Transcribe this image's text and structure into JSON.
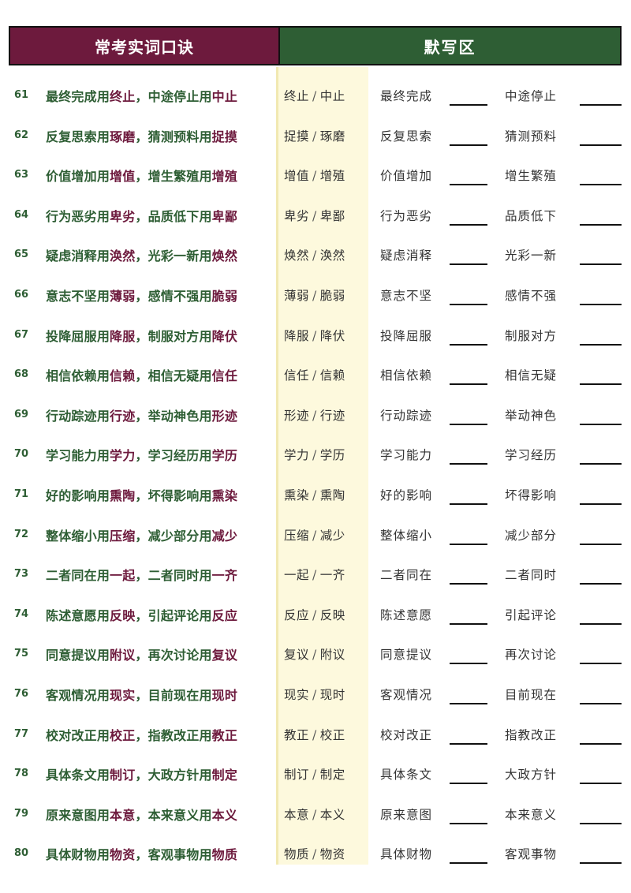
{
  "header": {
    "left_title": "常考实词口诀",
    "right_title": "默写区"
  },
  "colors": {
    "maroon": "#6d1a3d",
    "green": "#2e5e34",
    "answer_band": "#fdf9dd"
  },
  "rows": [
    {
      "num": "61",
      "a": "最终完成",
      "w1": "终止",
      "b": "中途停止",
      "w2": "中止",
      "ans1": "终止",
      "ans2": "中止",
      "q1": "最终完成",
      "q2": "中途停止"
    },
    {
      "num": "62",
      "a": "反复思索",
      "w1": "琢磨",
      "b": "猜测预料",
      "w2": "捉摸",
      "ans1": "捉摸",
      "ans2": "琢磨",
      "q1": "反复思索",
      "q2": "猜测预料"
    },
    {
      "num": "63",
      "a": "价值增加",
      "w1": "增值",
      "b": "增生繁殖",
      "w2": "增殖",
      "ans1": "增值",
      "ans2": "增殖",
      "q1": "价值增加",
      "q2": "增生繁殖"
    },
    {
      "num": "64",
      "a": "行为恶劣",
      "w1": "卑劣",
      "b": "品质低下",
      "w2": "卑鄙",
      "ans1": "卑劣",
      "ans2": "卑鄙",
      "q1": "行为恶劣",
      "q2": "品质低下"
    },
    {
      "num": "65",
      "a": "疑虑消释",
      "w1": "涣然",
      "b": "光彩一新",
      "w2": "焕然",
      "ans1": "焕然",
      "ans2": "涣然",
      "q1": "疑虑消释",
      "q2": "光彩一新"
    },
    {
      "num": "66",
      "a": "意志不坚",
      "w1": "薄弱",
      "b": "感情不强",
      "w2": "脆弱",
      "ans1": "薄弱",
      "ans2": "脆弱",
      "q1": "意志不坚",
      "q2": "感情不强"
    },
    {
      "num": "67",
      "a": "投降屈服",
      "w1": "降服",
      "b": "制服对方",
      "w2": "降伏",
      "ans1": "降服",
      "ans2": "降伏",
      "q1": "投降屈服",
      "q2": "制服对方"
    },
    {
      "num": "68",
      "a": "相信依赖",
      "w1": "信赖",
      "b": "相信无疑",
      "w2": "信任",
      "ans1": "信任",
      "ans2": "信赖",
      "q1": "相信依赖",
      "q2": "相信无疑"
    },
    {
      "num": "69",
      "a": "行动踪迹",
      "w1": "行迹",
      "b": "举动神色",
      "w2": "形迹",
      "ans1": "形迹",
      "ans2": "行迹",
      "q1": "行动踪迹",
      "q2": "举动神色"
    },
    {
      "num": "70",
      "a": "学习能力",
      "w1": "学力",
      "b": "学习经历",
      "w2": "学历",
      "ans1": "学力",
      "ans2": "学历",
      "q1": "学习能力",
      "q2": "学习经历"
    },
    {
      "num": "71",
      "a": "好的影响",
      "w1": "熏陶",
      "b": "坏得影响",
      "w2": "熏染",
      "ans1": "熏染",
      "ans2": "熏陶",
      "q1": "好的影响",
      "q2": "坏得影响"
    },
    {
      "num": "72",
      "a": "整体缩小",
      "w1": "压缩",
      "b": "减少部分",
      "w2": "减少",
      "ans1": "压缩",
      "ans2": "减少",
      "q1": "整体缩小",
      "q2": "减少部分"
    },
    {
      "num": "73",
      "a": "二者同在",
      "w1": "一起",
      "b": "二者同时",
      "w2": "一齐",
      "ans1": "一起",
      "ans2": "一齐",
      "q1": "二者同在",
      "q2": "二者同时"
    },
    {
      "num": "74",
      "a": "陈述意愿",
      "w1": "反映",
      "b": "引起评论",
      "w2": "反应",
      "ans1": "反应",
      "ans2": "反映",
      "q1": "陈述意愿",
      "q2": "引起评论"
    },
    {
      "num": "75",
      "a": "同意提议",
      "w1": "附议",
      "b": "再次讨论",
      "w2": "复议",
      "ans1": "复议",
      "ans2": "附议",
      "q1": "同意提议",
      "q2": "再次讨论"
    },
    {
      "num": "76",
      "a": "客观情况",
      "w1": "现实",
      "b": "目前现在",
      "w2": "现时",
      "ans1": "现实",
      "ans2": "现时",
      "q1": "客观情况",
      "q2": "目前现在"
    },
    {
      "num": "77",
      "a": "校对改正",
      "w1": "校正",
      "b": "指教改正",
      "w2": "教正",
      "ans1": "教正",
      "ans2": "校正",
      "q1": "校对改正",
      "q2": "指教改正"
    },
    {
      "num": "78",
      "a": "具体条文",
      "w1": "制订",
      "b": "大政方针",
      "w2": "制定",
      "ans1": "制订",
      "ans2": "制定",
      "q1": "具体条文",
      "q2": "大政方针"
    },
    {
      "num": "79",
      "a": "原来意图",
      "w1": "本意",
      "b": "本来意义",
      "w2": "本义",
      "ans1": "本意",
      "ans2": "本义",
      "q1": "原来意图",
      "q2": "本来意义"
    },
    {
      "num": "80",
      "a": "具体财物",
      "w1": "物资",
      "b": "客观事物",
      "w2": "物质",
      "ans1": "物质",
      "ans2": "物资",
      "q1": "具体财物",
      "q2": "客观事物"
    }
  ]
}
